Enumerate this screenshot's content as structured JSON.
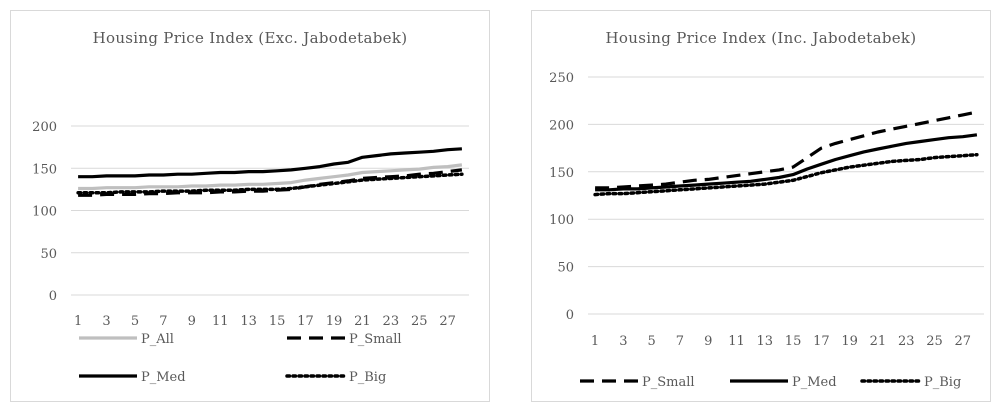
{
  "chart_data": [
    {
      "type": "line",
      "title": "Housing Price Index (Exc. Jabodetabek)",
      "xlabel": "",
      "ylabel": "",
      "ylim": [
        0,
        200
      ],
      "yticks": [
        0,
        50,
        100,
        150,
        200
      ],
      "x": [
        1,
        2,
        3,
        4,
        5,
        6,
        7,
        8,
        9,
        10,
        11,
        12,
        13,
        14,
        15,
        16,
        17,
        18,
        19,
        20,
        21,
        22,
        23,
        24,
        25,
        26,
        27,
        28
      ],
      "xtick_labels": [
        "1",
        "3",
        "5",
        "7",
        "9",
        "11",
        "13",
        "15",
        "17",
        "19",
        "21",
        "23",
        "25",
        "27"
      ],
      "grid": true,
      "legend": "bottom",
      "series": [
        {
          "name": "P_All",
          "color": "#bfbfbf",
          "style": "solid",
          "values": [
            126,
            126,
            127,
            127,
            127,
            128,
            128,
            128,
            129,
            129,
            130,
            130,
            131,
            131,
            132,
            133,
            136,
            138,
            140,
            142,
            145,
            146,
            147,
            148,
            149,
            151,
            152,
            154
          ]
        },
        {
          "name": "P_Small",
          "color": "#000000",
          "style": "dashed",
          "values": [
            118,
            118,
            119,
            119,
            119,
            120,
            120,
            121,
            121,
            121,
            122,
            122,
            123,
            123,
            124,
            125,
            128,
            131,
            133,
            135,
            138,
            139,
            140,
            141,
            143,
            144,
            146,
            148
          ]
        },
        {
          "name": "P_Med",
          "color": "#000000",
          "style": "solid",
          "values": [
            140,
            140,
            141,
            141,
            141,
            142,
            142,
            143,
            143,
            144,
            145,
            145,
            146,
            146,
            147,
            148,
            150,
            152,
            155,
            157,
            163,
            165,
            167,
            168,
            169,
            170,
            172,
            173
          ]
        },
        {
          "name": "P_Big",
          "color": "#000000",
          "style": "dotted",
          "values": [
            121,
            121,
            121,
            122,
            122,
            122,
            123,
            123,
            123,
            124,
            124,
            124,
            125,
            125,
            125,
            126,
            128,
            130,
            132,
            134,
            136,
            137,
            138,
            139,
            140,
            141,
            142,
            143
          ]
        }
      ]
    },
    {
      "type": "line",
      "title": "Housing Price Index (Inc. Jabodetabek)",
      "xlabel": "",
      "ylabel": "",
      "ylim": [
        0,
        250
      ],
      "yticks": [
        0,
        50,
        100,
        150,
        200,
        250
      ],
      "x": [
        1,
        2,
        3,
        4,
        5,
        6,
        7,
        8,
        9,
        10,
        11,
        12,
        13,
        14,
        15,
        16,
        17,
        18,
        19,
        20,
        21,
        22,
        23,
        24,
        25,
        26,
        27,
        28
      ],
      "xtick_labels": [
        "1",
        "3",
        "5",
        "7",
        "9",
        "11",
        "13",
        "15",
        "17",
        "19",
        "21",
        "23",
        "25",
        "27"
      ],
      "grid": true,
      "legend": "bottom",
      "series": [
        {
          "name": "P_Small",
          "color": "#000000",
          "style": "dashed",
          "values": [
            133,
            133,
            134,
            135,
            136,
            137,
            139,
            141,
            142,
            144,
            146,
            148,
            150,
            152,
            155,
            165,
            175,
            180,
            184,
            188,
            192,
            195,
            198,
            201,
            204,
            207,
            210,
            213
          ]
        },
        {
          "name": "P_Med",
          "color": "#000000",
          "style": "solid",
          "values": [
            131,
            131,
            132,
            132,
            133,
            134,
            135,
            136,
            137,
            138,
            139,
            140,
            142,
            144,
            147,
            153,
            158,
            163,
            167,
            171,
            174,
            177,
            180,
            182,
            184,
            186,
            187,
            189
          ]
        },
        {
          "name": "P_Big",
          "color": "#000000",
          "style": "dotted",
          "values": [
            126,
            127,
            127,
            128,
            129,
            130,
            131,
            132,
            133,
            134,
            135,
            136,
            137,
            139,
            141,
            145,
            149,
            152,
            155,
            157,
            159,
            161,
            162,
            163,
            165,
            166,
            167,
            168
          ]
        }
      ]
    }
  ]
}
